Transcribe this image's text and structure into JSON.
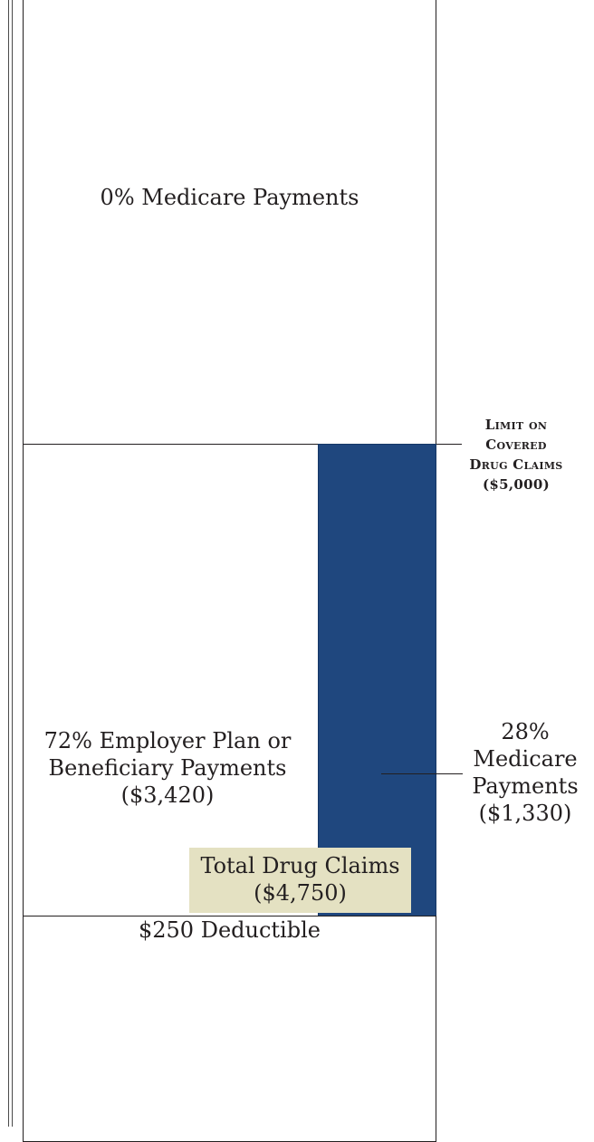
{
  "regions": {
    "above_limit": {
      "label": "0% Medicare Payments"
    },
    "employer": {
      "line1": "72% Employer Plan or",
      "line2": "Beneficiary Payments",
      "line3": "($3,420)"
    },
    "medicare": {
      "line1": "28%",
      "line2": "Medicare",
      "line3": "Payments",
      "line4": "($1,330)"
    },
    "total": {
      "line1": "Total Drug Claims",
      "line2": "($4,750)"
    },
    "deductible": {
      "label": "$250 Deductible"
    }
  },
  "limit": {
    "line1": "Limit on",
    "line2": "Covered",
    "line3": "Drug Claims",
    "line4": "($5,000)"
  },
  "colors": {
    "medicare_bar": "#1f477e",
    "total_box": "#e4e1c2"
  }
}
